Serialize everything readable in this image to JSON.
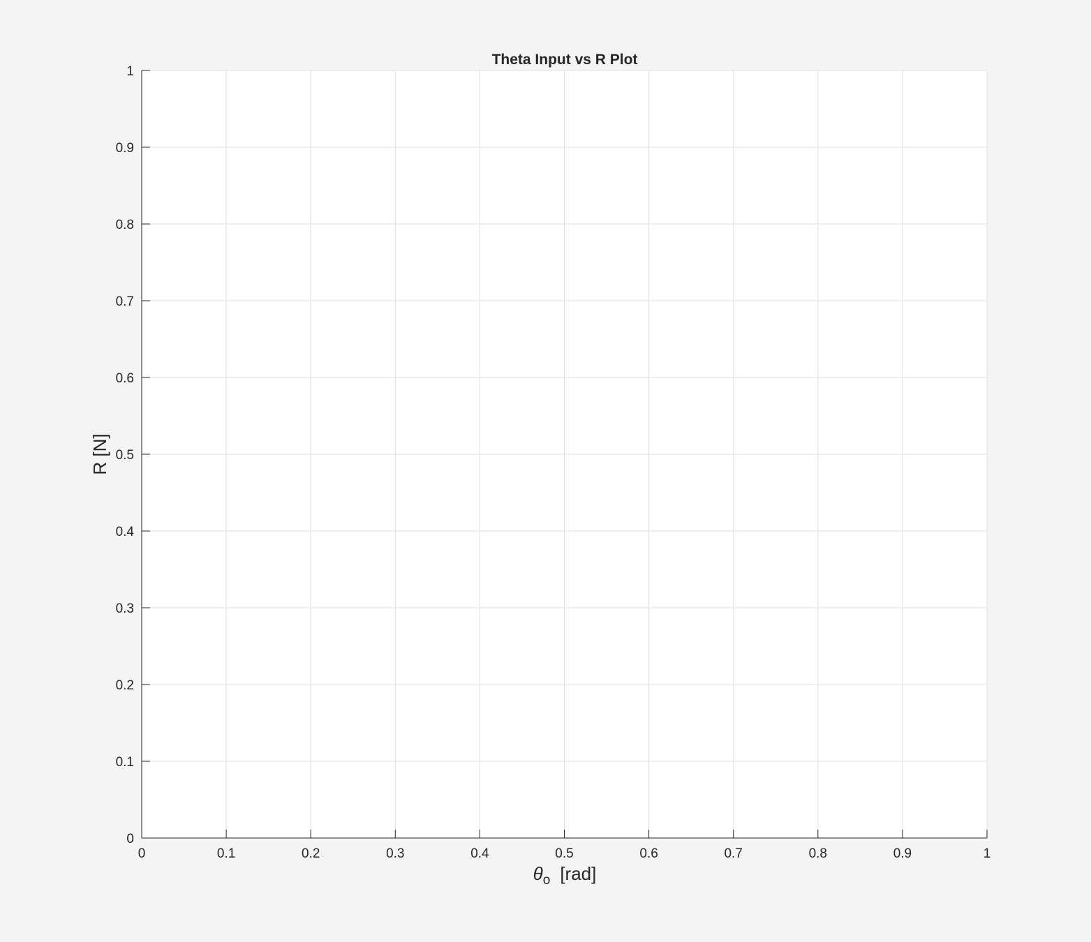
{
  "chart_data": {
    "type": "line",
    "title": "Theta Input vs R Plot",
    "xlabel": {
      "symbol": "θ",
      "subscript": "o",
      "unit": "[rad]"
    },
    "ylabel": "R [N]",
    "xlim": [
      0,
      1
    ],
    "ylim": [
      0,
      1
    ],
    "xticks": [
      0,
      0.1,
      0.2,
      0.3,
      0.4,
      0.5,
      0.6,
      0.7,
      0.8,
      0.9,
      1
    ],
    "yticks": [
      0,
      0.1,
      0.2,
      0.3,
      0.4,
      0.5,
      0.6,
      0.7,
      0.8,
      0.9,
      1
    ],
    "xtick_labels": [
      "0",
      "0.1",
      "0.2",
      "0.3",
      "0.4",
      "0.5",
      "0.6",
      "0.7",
      "0.8",
      "0.9",
      "1"
    ],
    "ytick_labels": [
      "0",
      "0.1",
      "0.2",
      "0.3",
      "0.4",
      "0.5",
      "0.6",
      "0.7",
      "0.8",
      "0.9",
      "1"
    ],
    "grid": true,
    "series": []
  },
  "colors": {
    "figure_background": "#f4f4f4",
    "axes_background": "#ffffff",
    "axis_line": "#262626",
    "grid": "#dfdfdf",
    "text": "#262626"
  }
}
